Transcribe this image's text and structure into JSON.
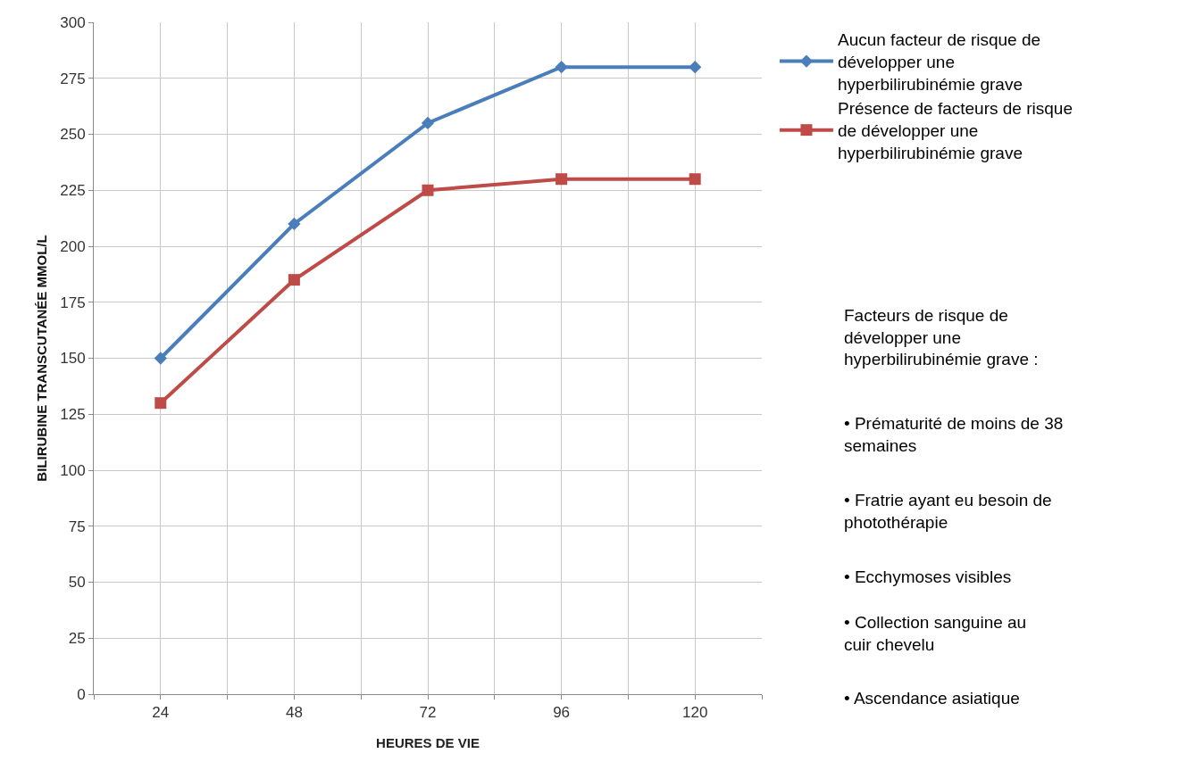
{
  "chart_data": {
    "type": "line",
    "xlabel": "HEURES DE VIE",
    "ylabel": "BILIRUBINE TRANSCUTANÉE MMOL/L",
    "x": [
      24,
      48,
      72,
      96,
      120
    ],
    "series": [
      {
        "name": "Aucun facteur de risque de développer une hyperbilirubinémie grave",
        "color": "#4a7ebb",
        "marker": "diamond",
        "values": [
          150,
          210,
          255,
          280,
          280
        ]
      },
      {
        "name": "Présence de facteurs de risque de développer une hyperbilirubinémie grave",
        "color": "#be4b48",
        "marker": "square",
        "values": [
          130,
          185,
          225,
          230,
          230
        ]
      }
    ],
    "xlim": [
      12,
      132
    ],
    "xticks": [
      {
        "value": 12,
        "label": null
      },
      24,
      {
        "value": 36,
        "label": null
      },
      48,
      {
        "value": 60,
        "label": null
      },
      72,
      {
        "value": 84,
        "label": null
      },
      96,
      {
        "value": 108,
        "label": null
      },
      120,
      {
        "value": 132,
        "label": null
      }
    ],
    "ylim": [
      0,
      300
    ],
    "yticks": [
      0,
      25,
      50,
      75,
      100,
      125,
      150,
      175,
      200,
      225,
      250,
      275,
      300
    ],
    "grid": true,
    "legend": "right",
    "line_style": "solid",
    "annotations": [
      "Facteurs de risque de développer une hyperbilirubinémie grave :",
      "• Prématurité de moins de 38 semaines",
      "• Fratrie ayant eu besoin de photothérapie",
      "• Ecchymoses visibles",
      "• Collection sanguine au cuir chevelu",
      "• Ascendance asiatique"
    ]
  }
}
